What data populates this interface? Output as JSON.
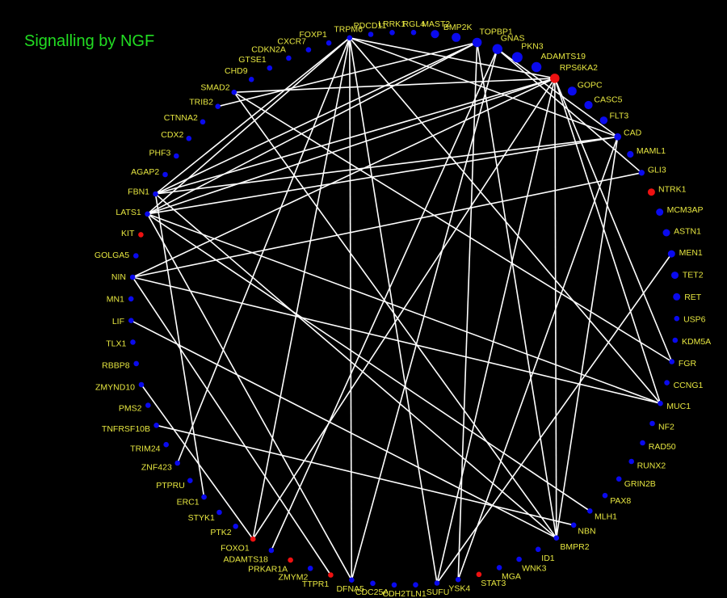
{
  "title": "Signalling by NGF",
  "colors": {
    "background": "#000000",
    "edge": "#ffffff",
    "label": "#e6e640",
    "title": "#22dd22",
    "blue": "#0a0aee",
    "red": "#ee1111"
  },
  "nodes": [
    {
      "id": "TRPM6",
      "color": "blue"
    },
    {
      "id": "PDCD11",
      "color": "blue"
    },
    {
      "id": "LRRK1",
      "color": "blue"
    },
    {
      "id": "RGL4",
      "color": "blue"
    },
    {
      "id": "MAST2",
      "color": "blue"
    },
    {
      "id": "BMP2K",
      "color": "blue"
    },
    {
      "id": "TOPBP1",
      "color": "blue"
    },
    {
      "id": "GNAS",
      "color": "blue"
    },
    {
      "id": "PKN3",
      "color": "blue"
    },
    {
      "id": "ADAMTS19",
      "color": "blue"
    },
    {
      "id": "RPS6KA2",
      "color": "red"
    },
    {
      "id": "GOPC",
      "color": "blue"
    },
    {
      "id": "CASC5",
      "color": "blue"
    },
    {
      "id": "FLT3",
      "color": "blue"
    },
    {
      "id": "CAD",
      "color": "blue"
    },
    {
      "id": "MAML1",
      "color": "blue"
    },
    {
      "id": "GLI3",
      "color": "blue"
    },
    {
      "id": "NTRK1",
      "color": "red"
    },
    {
      "id": "MCM3AP",
      "color": "blue"
    },
    {
      "id": "ASTN1",
      "color": "blue"
    },
    {
      "id": "MEN1",
      "color": "blue"
    },
    {
      "id": "TET2",
      "color": "blue"
    },
    {
      "id": "RET",
      "color": "blue"
    },
    {
      "id": "USP6",
      "color": "blue"
    },
    {
      "id": "KDM5A",
      "color": "blue"
    },
    {
      "id": "FGR",
      "color": "blue"
    },
    {
      "id": "CCNG1",
      "color": "blue"
    },
    {
      "id": "MUC1",
      "color": "blue"
    },
    {
      "id": "NF2",
      "color": "blue"
    },
    {
      "id": "RAD50",
      "color": "blue"
    },
    {
      "id": "RUNX2",
      "color": "blue"
    },
    {
      "id": "GRIN2B",
      "color": "blue"
    },
    {
      "id": "PAX8",
      "color": "blue"
    },
    {
      "id": "MLH1",
      "color": "blue"
    },
    {
      "id": "NBN",
      "color": "blue"
    },
    {
      "id": "BMPR2",
      "color": "blue"
    },
    {
      "id": "ID1",
      "color": "blue"
    },
    {
      "id": "WNK3",
      "color": "blue"
    },
    {
      "id": "MGA",
      "color": "blue"
    },
    {
      "id": "STAT3",
      "color": "red"
    },
    {
      "id": "YSK4",
      "color": "blue"
    },
    {
      "id": "SUFU",
      "color": "blue"
    },
    {
      "id": "TLN1",
      "color": "blue"
    },
    {
      "id": "CDH2",
      "color": "blue"
    },
    {
      "id": "CDC25A",
      "color": "blue"
    },
    {
      "id": "DFNA5",
      "color": "blue"
    },
    {
      "id": "TTPR1",
      "color": "red"
    },
    {
      "id": "ZMYM2",
      "color": "blue"
    },
    {
      "id": "PRKAR1A",
      "color": "red"
    },
    {
      "id": "ADAMTS18",
      "color": "blue"
    },
    {
      "id": "FOXO1",
      "color": "red"
    },
    {
      "id": "PTK2",
      "color": "blue"
    },
    {
      "id": "STYK1",
      "color": "blue"
    },
    {
      "id": "ERC1",
      "color": "blue"
    },
    {
      "id": "PTPRU",
      "color": "blue"
    },
    {
      "id": "ZNF423",
      "color": "blue"
    },
    {
      "id": "TRIM24",
      "color": "blue"
    },
    {
      "id": "TNFRSF10B",
      "color": "blue"
    },
    {
      "id": "PMS2",
      "color": "blue"
    },
    {
      "id": "ZMYND10",
      "color": "blue"
    },
    {
      "id": "RBBP8",
      "color": "blue"
    },
    {
      "id": "TLX1",
      "color": "blue"
    },
    {
      "id": "LIF",
      "color": "blue"
    },
    {
      "id": "MN1",
      "color": "blue"
    },
    {
      "id": "NIN",
      "color": "blue"
    },
    {
      "id": "GOLGA5",
      "color": "blue"
    },
    {
      "id": "KIT",
      "color": "red"
    },
    {
      "id": "LATS1",
      "color": "blue"
    },
    {
      "id": "FBN1",
      "color": "blue"
    },
    {
      "id": "AGAP2",
      "color": "blue"
    },
    {
      "id": "PHF3",
      "color": "blue"
    },
    {
      "id": "CDX2",
      "color": "blue"
    },
    {
      "id": "CTNNA2",
      "color": "blue"
    },
    {
      "id": "TRIB2",
      "color": "blue"
    },
    {
      "id": "SMAD2",
      "color": "blue"
    },
    {
      "id": "CHD9",
      "color": "blue"
    },
    {
      "id": "GTSE1",
      "color": "blue"
    },
    {
      "id": "CDKN2A",
      "color": "blue"
    },
    {
      "id": "CXCR7",
      "color": "blue"
    },
    {
      "id": "FOXP1",
      "color": "blue"
    }
  ],
  "edges": [
    [
      "TRPM6",
      "CAD"
    ],
    [
      "TRPM6",
      "FBN1"
    ],
    [
      "TRPM6",
      "LATS1"
    ],
    [
      "TRPM6",
      "FOXO1"
    ],
    [
      "TRPM6",
      "ZNF423"
    ],
    [
      "TRPM6",
      "MUC1"
    ],
    [
      "TRPM6",
      "SUFU"
    ],
    [
      "TRPM6",
      "DFNA5"
    ],
    [
      "TOPBP1",
      "FBN1"
    ],
    [
      "TOPBP1",
      "LATS1"
    ],
    [
      "TOPBP1",
      "YSK4"
    ],
    [
      "TOPBP1",
      "BMPR2"
    ],
    [
      "TOPBP1",
      "TRIB2"
    ],
    [
      "GNAS",
      "CAD"
    ],
    [
      "GNAS",
      "GLI3"
    ],
    [
      "GNAS",
      "ADAMTS18"
    ],
    [
      "GNAS",
      "DFNA5"
    ],
    [
      "RPS6KA2",
      "SMAD2"
    ],
    [
      "RPS6KA2",
      "FBN1"
    ],
    [
      "RPS6KA2",
      "LATS1"
    ],
    [
      "RPS6KA2",
      "NIN"
    ],
    [
      "RPS6KA2",
      "FOXO1"
    ],
    [
      "RPS6KA2",
      "SUFU"
    ],
    [
      "RPS6KA2",
      "BMPR2"
    ],
    [
      "RPS6KA2",
      "MUC1"
    ],
    [
      "RPS6KA2",
      "FGR"
    ],
    [
      "RPS6KA2",
      "TRPM6"
    ],
    [
      "CAD",
      "FBN1"
    ],
    [
      "CAD",
      "LATS1"
    ],
    [
      "CAD",
      "YSK4"
    ],
    [
      "CAD",
      "BMPR2"
    ],
    [
      "SMAD2",
      "FGR"
    ],
    [
      "GLI3",
      "NIN"
    ],
    [
      "MEN1",
      "SUFU"
    ],
    [
      "FBN1",
      "ERC1"
    ],
    [
      "FBN1",
      "BMPR2"
    ],
    [
      "LATS1",
      "MUC1"
    ],
    [
      "LATS1",
      "MLH1"
    ],
    [
      "LATS1",
      "DFNA5"
    ],
    [
      "NIN",
      "MUC1"
    ],
    [
      "NIN",
      "TTPR1"
    ],
    [
      "LIF",
      "BMPR2"
    ],
    [
      "ZMYND10",
      "FOXO1"
    ],
    [
      "TNFRSF10B",
      "NBN"
    ],
    [
      "BMPR2",
      "SMAD2"
    ]
  ]
}
